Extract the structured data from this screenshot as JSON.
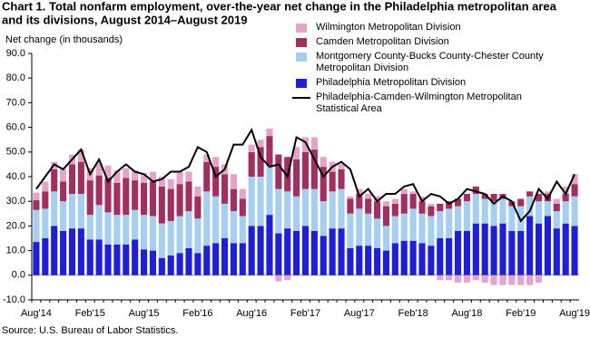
{
  "chart_data": {
    "type": "bar",
    "title": [
      "Chart 1. Total nonfarm employment, over-the-year net change in the Philadelphia metropolitan area",
      "and its divisions, August 2014–August 2019"
    ],
    "y_label": "Net change (in thousands)",
    "source": "Source: U.S. Bureau of Labor Statistics.",
    "stacked": true,
    "categories": [
      "Aug'14",
      null,
      null,
      null,
      null,
      null,
      "Feb'15",
      null,
      null,
      null,
      null,
      null,
      "Aug'15",
      null,
      null,
      null,
      null,
      null,
      "Feb'16",
      null,
      null,
      null,
      null,
      null,
      "Aug'16",
      null,
      null,
      null,
      null,
      null,
      "Feb'17",
      null,
      null,
      null,
      null,
      null,
      "Aug'17",
      null,
      null,
      null,
      null,
      null,
      "Feb'18",
      null,
      null,
      null,
      null,
      null,
      "Aug'18",
      null,
      null,
      null,
      null,
      null,
      "Feb'19",
      null,
      null,
      null,
      null,
      null,
      "Aug'19"
    ],
    "ylim": [
      -10,
      90
    ],
    "yticks": [
      {
        "value": -10,
        "label": "-10.0"
      },
      {
        "value": 0,
        "label": "0.0"
      },
      {
        "value": 10,
        "label": "10.0"
      },
      {
        "value": 20,
        "label": "20.0"
      },
      {
        "value": 30,
        "label": "30.0"
      },
      {
        "value": 40,
        "label": "40.0"
      },
      {
        "value": 50,
        "label": "50.0"
      },
      {
        "value": 60,
        "label": "60.0"
      },
      {
        "value": 70,
        "label": "70.0"
      },
      {
        "value": 80,
        "label": "80.0"
      },
      {
        "value": 90,
        "label": "90.0"
      }
    ],
    "grid": false,
    "series": [
      {
        "name": "Philadelphia Metropolitan Division",
        "color": "#1f1fd6",
        "type": "bar",
        "values": [
          13.5,
          15,
          20,
          18,
          19,
          19,
          14.5,
          14.5,
          12.5,
          12.5,
          12.5,
          14.5,
          10.5,
          10,
          7,
          8,
          9,
          11,
          9,
          12,
          13,
          15,
          13,
          13,
          20,
          20,
          24.5,
          17,
          19,
          18,
          20,
          18,
          16,
          19,
          19,
          11,
          12,
          12,
          11,
          10,
          13,
          14,
          14,
          13,
          12,
          15,
          15,
          18,
          18,
          21,
          21,
          20,
          21,
          18,
          18,
          24,
          21,
          24,
          19,
          21,
          20
        ]
      },
      {
        "name": "Montgomery County-Bucks County-Chester County Metropolitan Division",
        "color": "#a6cef0",
        "type": "bar",
        "values": [
          13,
          12,
          14,
          12,
          14,
          14,
          10,
          14,
          13,
          12,
          12,
          12,
          14,
          14,
          14,
          14,
          15,
          15,
          14,
          22,
          19,
          14,
          13,
          11,
          20,
          20,
          20,
          18,
          15,
          14,
          15,
          17,
          14,
          15,
          16,
          14,
          15,
          13,
          12,
          10,
          11,
          11,
          13,
          12,
          12,
          11,
          12,
          10,
          12,
          12,
          10,
          10,
          10,
          10,
          10,
          8,
          9,
          6,
          7,
          9,
          12
        ]
      },
      {
        "name": "Camden Metropolitan Division",
        "color": "#a0305f",
        "type": "bar",
        "values": [
          4,
          7,
          9,
          8,
          12,
          13,
          14,
          12,
          14,
          13,
          15,
          12,
          13,
          14,
          15,
          13,
          13,
          12,
          9,
          12,
          12,
          12,
          9,
          7,
          10,
          12,
          12,
          14,
          14,
          15,
          15,
          16,
          14,
          8,
          8,
          6,
          6,
          6,
          7,
          8,
          5,
          8,
          6,
          5,
          4,
          3,
          3,
          3,
          3,
          3,
          2,
          3,
          2,
          2,
          3,
          2,
          3,
          3,
          3,
          3,
          5
        ]
      },
      {
        "name": "Wilmington Metropolitan Division",
        "color": "#e6a3c8",
        "type": "bar",
        "values": [
          3,
          4,
          3,
          5,
          4,
          5,
          5,
          5,
          5,
          5,
          4,
          4,
          4,
          4,
          4,
          4,
          5,
          4,
          4,
          3,
          4,
          4,
          6,
          4,
          3,
          3,
          3,
          -2.5,
          -2,
          5,
          6,
          5,
          4,
          4,
          2,
          1,
          2,
          2,
          2,
          2,
          2,
          2,
          1,
          2,
          1,
          -2,
          -2,
          -3,
          -3,
          -2,
          -3,
          -4,
          -4,
          -4,
          -4,
          -4,
          -3,
          1,
          2,
          3,
          4
        ]
      },
      {
        "name": "Philadelphia-Camden-Wilmington Metropolitan Statistical Area",
        "color": "#000000",
        "type": "line",
        "values": [
          35,
          40,
          45,
          43,
          47,
          51,
          41,
          47,
          38,
          42,
          45,
          42,
          41,
          38,
          39,
          42,
          42,
          44,
          52,
          50,
          40,
          43,
          53,
          53,
          59,
          48,
          44,
          45,
          40,
          56,
          54,
          47,
          40,
          44,
          46,
          43,
          32,
          35,
          30,
          33,
          33,
          36,
          37,
          30,
          33,
          32,
          29,
          31,
          35,
          34,
          33,
          29,
          32,
          30,
          22,
          26,
          35,
          31,
          38,
          33,
          41
        ]
      }
    ],
    "legend_order": [
      3,
      2,
      1,
      0,
      4
    ]
  }
}
